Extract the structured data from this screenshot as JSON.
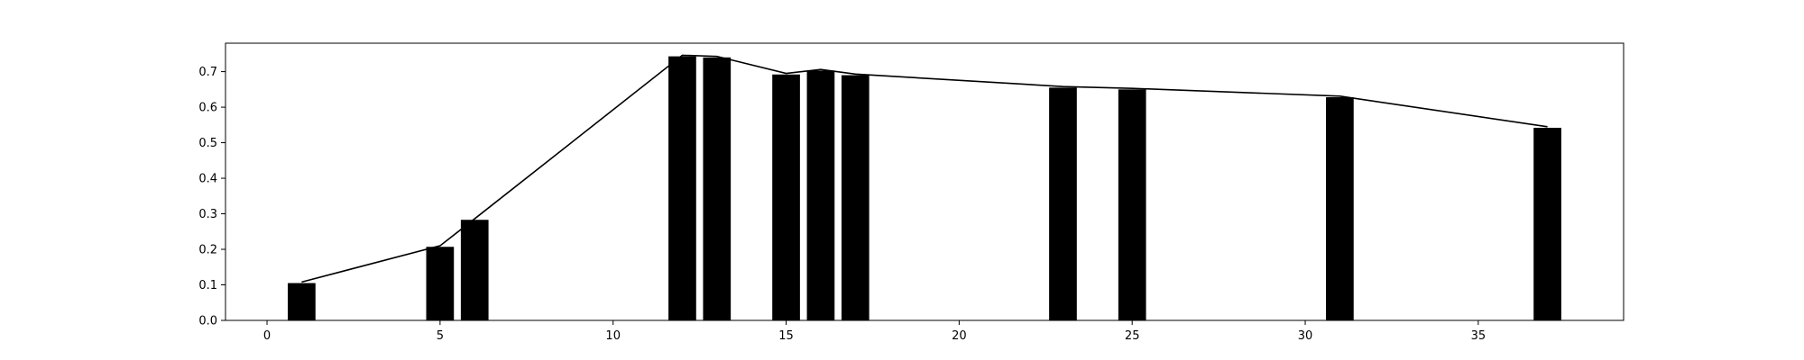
{
  "chart_data": {
    "type": "bar",
    "title": "",
    "xlabel": "",
    "ylabel": "",
    "x": [
      1,
      5,
      6,
      12,
      13,
      15,
      16,
      17,
      23,
      25,
      31,
      37
    ],
    "values": [
      0.105,
      0.207,
      0.283,
      0.743,
      0.74,
      0.692,
      0.703,
      0.69,
      0.655,
      0.65,
      0.628,
      0.542
    ],
    "line_values": [
      0.108,
      0.21,
      0.286,
      0.746,
      0.743,
      0.695,
      0.706,
      0.693,
      0.658,
      0.653,
      0.631,
      0.545
    ],
    "bar_width": 0.8,
    "xlim": [
      -1.2,
      39.2
    ],
    "ylim": [
      0,
      0.78
    ],
    "xticks": [
      0,
      5,
      10,
      15,
      20,
      25,
      30,
      35
    ],
    "xtick_labels": [
      "0",
      "5",
      "10",
      "15",
      "20",
      "25",
      "30",
      "35"
    ],
    "yticks": [
      0.0,
      0.1,
      0.2,
      0.3,
      0.4,
      0.5,
      0.6,
      0.7
    ],
    "ytick_labels": [
      "0.0",
      "0.1",
      "0.2",
      "0.3",
      "0.4",
      "0.5",
      "0.6",
      "0.7"
    ],
    "grid": false,
    "legend": "none",
    "colors": {
      "bar": "#000000",
      "line": "#000000",
      "axes": "#000000"
    }
  }
}
